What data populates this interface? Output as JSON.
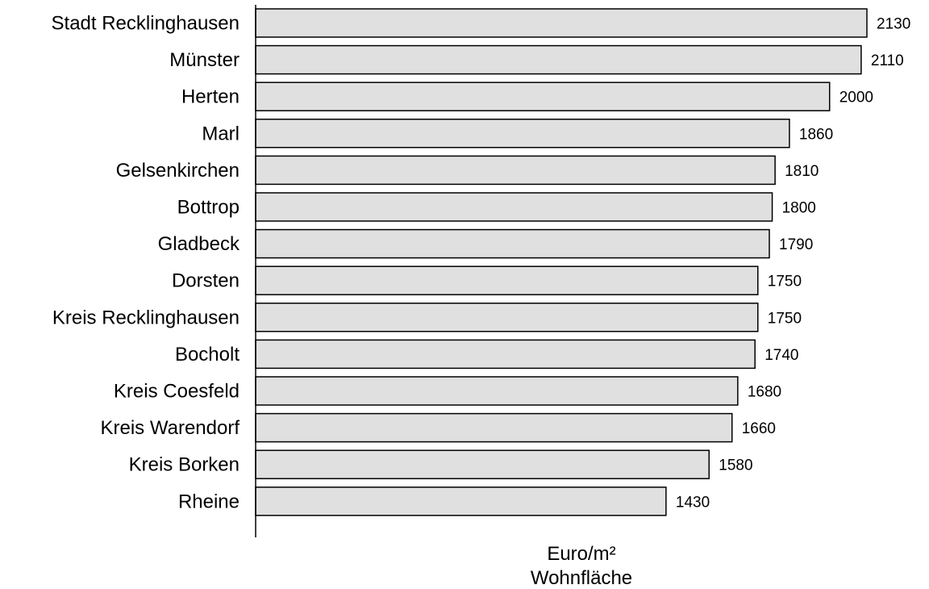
{
  "chart_data": {
    "type": "bar",
    "orientation": "horizontal",
    "categories": [
      "Stadt Recklinghausen",
      "Münster",
      "Herten",
      "Marl",
      "Gelsenkirchen",
      "Bottrop",
      "Gladbeck",
      "Dorsten",
      "Kreis Recklinghausen",
      "Bocholt",
      "Kreis Coesfeld",
      "Kreis Warendorf",
      "Kreis Borken",
      "Rheine"
    ],
    "values": [
      2130,
      2110,
      2000,
      1860,
      1810,
      1800,
      1790,
      1750,
      1750,
      1740,
      1680,
      1660,
      1580,
      1430
    ],
    "value_labels": [
      "2130",
      "2110",
      "2000",
      "1860",
      "1810",
      "1800",
      "1790",
      "1750",
      "1750",
      "1740",
      "1680",
      "1660",
      "1580",
      "1430"
    ],
    "xlabel_lines": [
      "Euro/m²",
      "Wohnfläche"
    ],
    "xlim": [
      0,
      2130
    ],
    "bar_color": "#e0e0e0",
    "grid": false,
    "legend": "none"
  }
}
